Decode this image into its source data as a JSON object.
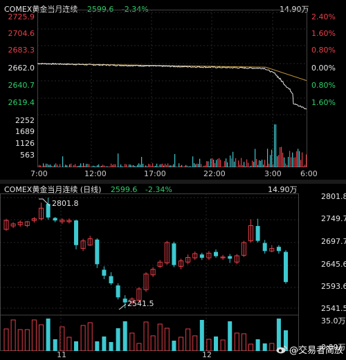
{
  "intraday": {
    "title": "COMEX黄金当月连续",
    "price": "2599.6",
    "change": "-2.34%",
    "volume": "14.90万",
    "price_axis": [
      "2725.9",
      "2704.6",
      "2683.3",
      "2662.0",
      "2640.7",
      "2619.4"
    ],
    "pct_axis": [
      "2.40%",
      "1.60%",
      "0.80%",
      "0.00%",
      "0.80%",
      "1.60%"
    ],
    "vol_axis": [
      "2252",
      "1689",
      "1126",
      "563"
    ],
    "time_axis": [
      "7:00",
      "12:00",
      "17:00",
      "22:00",
      "3:00",
      "6:00"
    ]
  },
  "daily": {
    "title": "COMEX黄金当月连续 (日线)",
    "price": "2599.6",
    "change": "-2.34%",
    "volume": "14.90万",
    "price_axis": [
      "2801.8",
      "2749.7",
      "2697.7",
      "2645.6",
      "2593.6",
      "2541.5"
    ],
    "vol_axis": [
      "35.0万",
      "0.00万"
    ],
    "high_label": "2801.8",
    "low_label": "2541.5",
    "month_labels": [
      "11",
      "12"
    ]
  },
  "watermark": "@交易者简放",
  "colors": {
    "up": "#e8404a",
    "down": "#3ec9d1",
    "avg": "#c79a3a",
    "line": "#e6e6e6"
  },
  "chart_data": [
    {
      "type": "line",
      "title": "COMEX黄金当月连续",
      "x": [
        "7:00",
        "12:00",
        "17:00",
        "22:00",
        "3:00",
        "6:00"
      ],
      "series": [
        {
          "values": [
            2662.0,
            2660.0,
            2659.0,
            2661.0,
            2657.0,
            2629.0
          ]
        }
      ],
      "ylim": [
        2598.1,
        2725.9
      ]
    },
    {
      "type": "bar",
      "title": "COMEX黄金当月连续 (日线)",
      "categories": [
        "11",
        "12"
      ],
      "values": [
        2801.8,
        2541.5
      ],
      "ylim": [
        2541.5,
        2801.8
      ]
    }
  ]
}
